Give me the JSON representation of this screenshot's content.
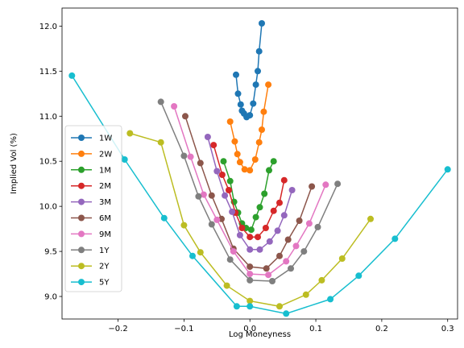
{
  "chart_data": {
    "type": "line",
    "xlabel": "Log Moneyness",
    "ylabel": "Implied Vol (%)",
    "xlim": [
      -0.285,
      0.315
    ],
    "ylim": [
      8.75,
      12.2
    ],
    "x_ticks": [
      -0.2,
      -0.1,
      0.0,
      0.1,
      0.2,
      0.3
    ],
    "x_tick_labels": [
      "−0.2",
      "−0.1",
      "0.0",
      "0.1",
      "0.2",
      "0.3"
    ],
    "y_ticks": [
      9.0,
      9.5,
      10.0,
      10.5,
      11.0,
      11.5,
      12.0
    ],
    "y_tick_labels": [
      "9.0",
      "9.5",
      "10.0",
      "10.5",
      "11.0",
      "11.5",
      "12.0"
    ],
    "grid": false,
    "legend_position": "center-left",
    "series": [
      {
        "name": "1W",
        "color": "#1f77b4",
        "x": [
          -0.021,
          -0.018,
          -0.014,
          -0.012,
          -0.009,
          -0.005,
          0.0,
          0.005,
          0.009,
          0.012,
          0.014,
          0.018
        ],
        "y": [
          11.46,
          11.25,
          11.13,
          11.06,
          11.03,
          10.99,
          11.01,
          11.14,
          11.35,
          11.5,
          11.72,
          12.03
        ]
      },
      {
        "name": "2W",
        "color": "#ff7f0e",
        "x": [
          -0.03,
          -0.023,
          -0.019,
          -0.015,
          -0.008,
          0.0,
          0.008,
          0.014,
          0.018,
          0.021,
          0.028
        ],
        "y": [
          10.94,
          10.72,
          10.58,
          10.49,
          10.41,
          10.4,
          10.52,
          10.71,
          10.85,
          11.05,
          11.35
        ]
      },
      {
        "name": "1M",
        "color": "#2ca02c",
        "x": [
          -0.04,
          -0.03,
          -0.024,
          -0.018,
          -0.012,
          -0.006,
          0.002,
          0.009,
          0.015,
          0.022,
          0.029,
          0.036
        ],
        "y": [
          10.5,
          10.28,
          10.05,
          9.93,
          9.81,
          9.76,
          9.74,
          9.88,
          9.99,
          10.14,
          10.4,
          10.5
        ]
      },
      {
        "name": "2M",
        "color": "#d62728",
        "x": [
          -0.055,
          -0.042,
          -0.032,
          -0.022,
          -0.012,
          0.0,
          0.012,
          0.024,
          0.036,
          0.045,
          0.052
        ],
        "y": [
          10.68,
          10.35,
          10.18,
          9.93,
          9.76,
          9.66,
          9.66,
          9.76,
          9.95,
          10.04,
          10.29
        ]
      },
      {
        "name": "3M",
        "color": "#9467bd",
        "x": [
          -0.064,
          -0.05,
          -0.038,
          -0.027,
          -0.015,
          0.0,
          0.015,
          0.03,
          0.042,
          0.052,
          0.064
        ],
        "y": [
          10.77,
          10.39,
          10.12,
          9.94,
          9.68,
          9.52,
          9.52,
          9.61,
          9.73,
          9.9,
          10.18
        ]
      },
      {
        "name": "6M",
        "color": "#8c564b",
        "x": [
          -0.098,
          -0.075,
          -0.058,
          -0.043,
          -0.025,
          0.0,
          0.025,
          0.045,
          0.058,
          0.075,
          0.094
        ],
        "y": [
          11.0,
          10.48,
          10.12,
          9.86,
          9.53,
          9.33,
          9.31,
          9.45,
          9.63,
          9.84,
          10.22
        ]
      },
      {
        "name": "9M",
        "color": "#e377c2",
        "x": [
          -0.115,
          -0.09,
          -0.07,
          -0.05,
          -0.025,
          0.0,
          0.028,
          0.055,
          0.07,
          0.09,
          0.115
        ],
        "y": [
          11.11,
          10.55,
          10.13,
          9.85,
          9.5,
          9.25,
          9.24,
          9.39,
          9.56,
          9.81,
          10.24
        ]
      },
      {
        "name": "1Y",
        "color": "#7f7f7f",
        "x": [
          -0.135,
          -0.1,
          -0.078,
          -0.058,
          -0.03,
          0.0,
          0.034,
          0.062,
          0.082,
          0.103,
          0.133
        ],
        "y": [
          11.16,
          10.56,
          10.11,
          9.8,
          9.41,
          9.18,
          9.17,
          9.31,
          9.5,
          9.77,
          10.25
        ]
      },
      {
        "name": "2Y",
        "color": "#bcbd22",
        "x": [
          -0.182,
          -0.135,
          -0.1,
          -0.075,
          -0.035,
          0.0,
          0.045,
          0.085,
          0.109,
          0.14,
          0.183
        ],
        "y": [
          10.81,
          10.71,
          9.79,
          9.49,
          9.12,
          8.95,
          8.89,
          9.02,
          9.18,
          9.42,
          9.86
        ]
      },
      {
        "name": "5Y",
        "color": "#17becf",
        "x": [
          -0.27,
          -0.19,
          -0.13,
          -0.087,
          -0.02,
          0.0,
          0.055,
          0.122,
          0.165,
          0.22,
          0.3
        ],
        "y": [
          11.45,
          10.52,
          9.87,
          9.45,
          8.89,
          8.89,
          8.81,
          8.97,
          9.23,
          9.64,
          10.41
        ]
      }
    ]
  }
}
